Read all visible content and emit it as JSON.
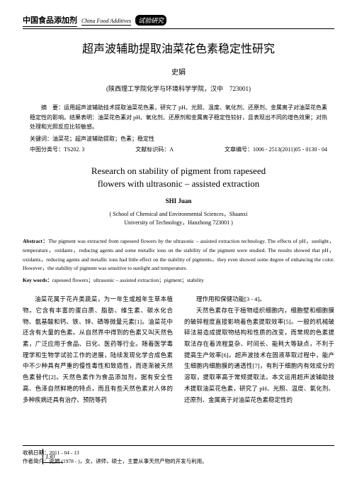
{
  "header": {
    "journal_cn": "中国食品添加剂",
    "journal_en": "China Food Additives",
    "section": "试验研究"
  },
  "title_cn": "超声波辅助提取油菜花色素稳定性研究",
  "author_cn": "史娟",
  "affil_cn": "(陕西理工学院化学与环境科学学院，汉中　723001)",
  "abstract_cn_label": "摘　要：",
  "abstract_cn": "运用超声波辅助技术提取油菜花色素，研究了 pH、光照、温度、氧化剂、还原剂、金属离子对油菜花色素稳定性的影响。结果表明：油菜花色素对 pH、氧化剂、还原剂和金属离子稳定性较好，且表现出不同的增色效果；对热处理和光照反应比较敏感。",
  "kw_cn_label": "关键词：",
  "kw_cn": "油菜花；超声波辅助提取；色素；稳定性",
  "class": {
    "clc_label": "中图分类号：",
    "clc": "TS202. 3",
    "doc_label": "文献标识码：",
    "doc": "A",
    "no_label": "文章编号：",
    "no": "1006 - 2513(2011)05 - 0130 - 04"
  },
  "title_en_l1": "Research on stability of pigment from rapeseed",
  "title_en_l2": "flowers with ultrasonic – assisted extraction",
  "author_en": "SHI Juan",
  "affil_en_l1": "( School of Chemical and Environmental Sciences，Shaanxi",
  "affil_en_l2": "University of Technology，Hanzhong 723001 )",
  "abstract_en_label": "Abstract：",
  "abstract_en": "The pigment was extracted from rapeseed flowers by the ultrasonic – assisted extraction technology. The effects of pH，sunlight，temperature，oxidants，reducing agents and some metallic ions on the stability of the pigment were studied. The results showed that pH，oxidants，reducing agents and metallic ions had little effect on the stability of pigments，they even showed some degree of enhancing the color. However，the stability of pigment was sensitive to sunlight and temperature.",
  "kw_en_label": "Key words：",
  "kw_en": "rapeseed flowers；ultrasonic – assisted extraction；pigment；stability",
  "body": {
    "left_p1": "油菜花属于花卉类蔬菜，为一年生或越年生草本植物。它含有丰富的蛋白质、脂肪、维生素、碳水化合物、氨基酸和钙、铁、锌、硒等微量元素[1]。油菜花中还含有大量的色素。从自然界中得到的色素又叫天然色素，广泛应用于食品、日化、医药等行业。随着医学毒理学和生物学试验工作的进展，陆续发现化学合成色素中不少种具有严重的慢性毒性和致癌性，而逐渐被天然色素替代[2]。天然色素作为食品添加剂，据有安全性高、色泽自然鲜艳的特点，而且有些天然色素对人体的多种疾病还具有治疗、预防等药",
    "right_p1": "理作用和保健功能[3 - 4]。",
    "right_p2": "天然色素存在于植物组织细胞内，细胞壁和细胞膜的破碎程度直接影响着色素提取效率[5]。一般的机械破碎法易造成提取物结构和性质的改变，而常规的色素提取法存在着流程复杂、时间长、能耗大等缺点，不利于提高生产效率[6]。超声波技术在固液萃取过程中，能产生细胞内细胞膜的通透性[7]，有利于细胞内有效成分的溶取，提取率高于常规提取法。本文运用超声波辅助技术提取油菜花色素，研究了 pH、光照、温度、氧化剂、还原剂、金属离子对油菜花色素稳定性的"
  },
  "footer": {
    "recv_label": "收稿日期：",
    "recv": "2011 - 04 - 13",
    "author_label": "作者简介：",
    "author": "史娟 (1978 - )，女，讲师，硕士，主要从事天然产物的开发与利用。"
  },
  "page_number": "130"
}
